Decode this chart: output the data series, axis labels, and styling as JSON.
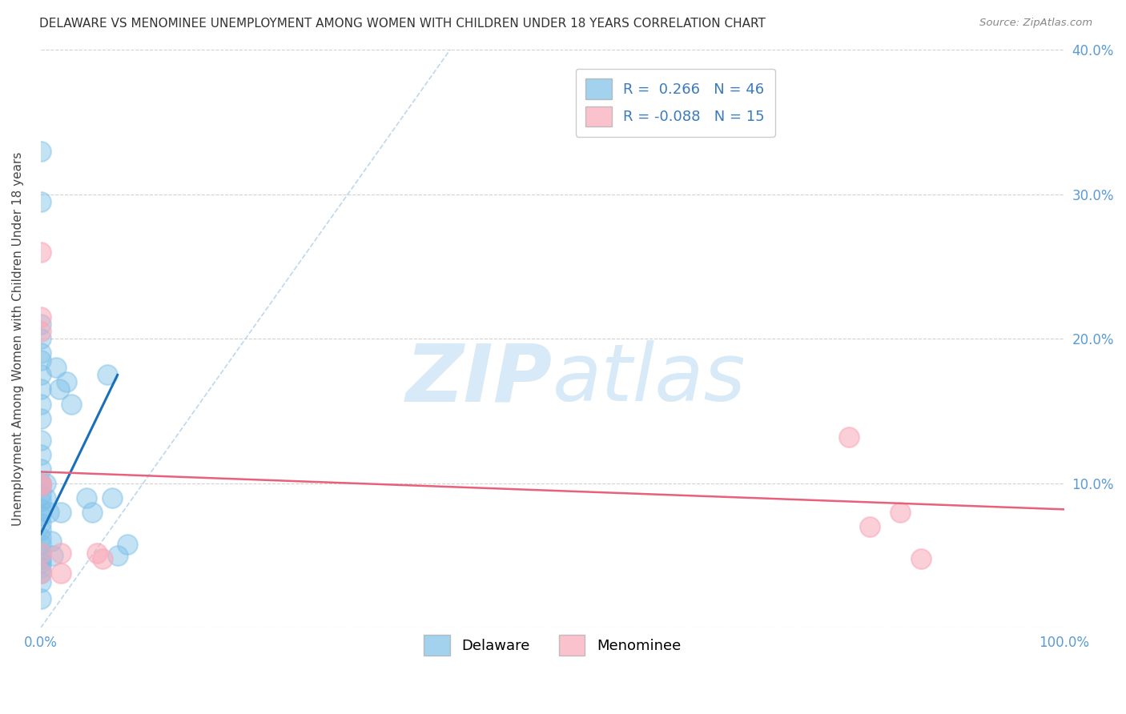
{
  "title": "DELAWARE VS MENOMINEE UNEMPLOYMENT AMONG WOMEN WITH CHILDREN UNDER 18 YEARS CORRELATION CHART",
  "source": "Source: ZipAtlas.com",
  "ylabel": "Unemployment Among Women with Children Under 18 years",
  "xlim": [
    0,
    1.0
  ],
  "ylim": [
    0,
    0.4
  ],
  "xticks": [
    0.0,
    0.1,
    0.2,
    0.3,
    0.4,
    0.5,
    0.6,
    0.7,
    0.8,
    0.9,
    1.0
  ],
  "yticks": [
    0.0,
    0.1,
    0.2,
    0.3,
    0.4
  ],
  "ytick_labels": [
    "",
    "10.0%",
    "20.0%",
    "30.0%",
    "40.0%"
  ],
  "xtick_labels": [
    "0.0%",
    "",
    "",
    "",
    "",
    "",
    "",
    "",
    "",
    "",
    "100.0%"
  ],
  "delaware_R": 0.266,
  "delaware_N": 46,
  "menominee_R": -0.088,
  "menominee_N": 15,
  "delaware_color": "#7bbfe8",
  "menominee_color": "#f9a8b8",
  "delaware_line_color": "#1a6fba",
  "menominee_line_color": "#e8607a",
  "background_color": "#ffffff",
  "watermark_color": "#d8eaf7",
  "delaware_x": [
    0.0,
    0.0,
    0.0,
    0.0,
    0.0,
    0.0,
    0.0,
    0.0,
    0.0,
    0.0,
    0.0,
    0.0,
    0.0,
    0.0,
    0.0,
    0.0,
    0.0,
    0.0,
    0.0,
    0.0,
    0.0,
    0.0,
    0.0,
    0.0,
    0.0,
    0.0,
    0.0,
    0.0,
    0.0,
    0.0,
    0.005,
    0.005,
    0.008,
    0.01,
    0.012,
    0.015,
    0.018,
    0.02,
    0.025,
    0.03,
    0.045,
    0.05,
    0.065,
    0.07,
    0.075,
    0.085
  ],
  "delaware_y": [
    0.33,
    0.295,
    0.21,
    0.2,
    0.19,
    0.185,
    0.175,
    0.165,
    0.155,
    0.145,
    0.13,
    0.12,
    0.11,
    0.1,
    0.098,
    0.092,
    0.088,
    0.082,
    0.078,
    0.072,
    0.068,
    0.062,
    0.058,
    0.052,
    0.048,
    0.045,
    0.042,
    0.038,
    0.032,
    0.02,
    0.1,
    0.09,
    0.08,
    0.06,
    0.05,
    0.18,
    0.165,
    0.08,
    0.17,
    0.155,
    0.09,
    0.08,
    0.175,
    0.09,
    0.05,
    0.058
  ],
  "menominee_x": [
    0.0,
    0.0,
    0.0,
    0.0,
    0.0,
    0.0,
    0.0,
    0.02,
    0.02,
    0.055,
    0.06,
    0.79,
    0.81,
    0.84,
    0.86
  ],
  "menominee_y": [
    0.26,
    0.215,
    0.205,
    0.1,
    0.098,
    0.052,
    0.038,
    0.052,
    0.038,
    0.052,
    0.048,
    0.132,
    0.07,
    0.08,
    0.048
  ],
  "delaware_trendline_x": [
    0.0,
    0.075
  ],
  "delaware_trendline_y": [
    0.065,
    0.175
  ],
  "menominee_trendline_x": [
    0.0,
    1.0
  ],
  "menominee_trendline_y": [
    0.108,
    0.082
  ],
  "refline_x": [
    0.0,
    0.4
  ],
  "refline_y": [
    0.0,
    0.4
  ]
}
